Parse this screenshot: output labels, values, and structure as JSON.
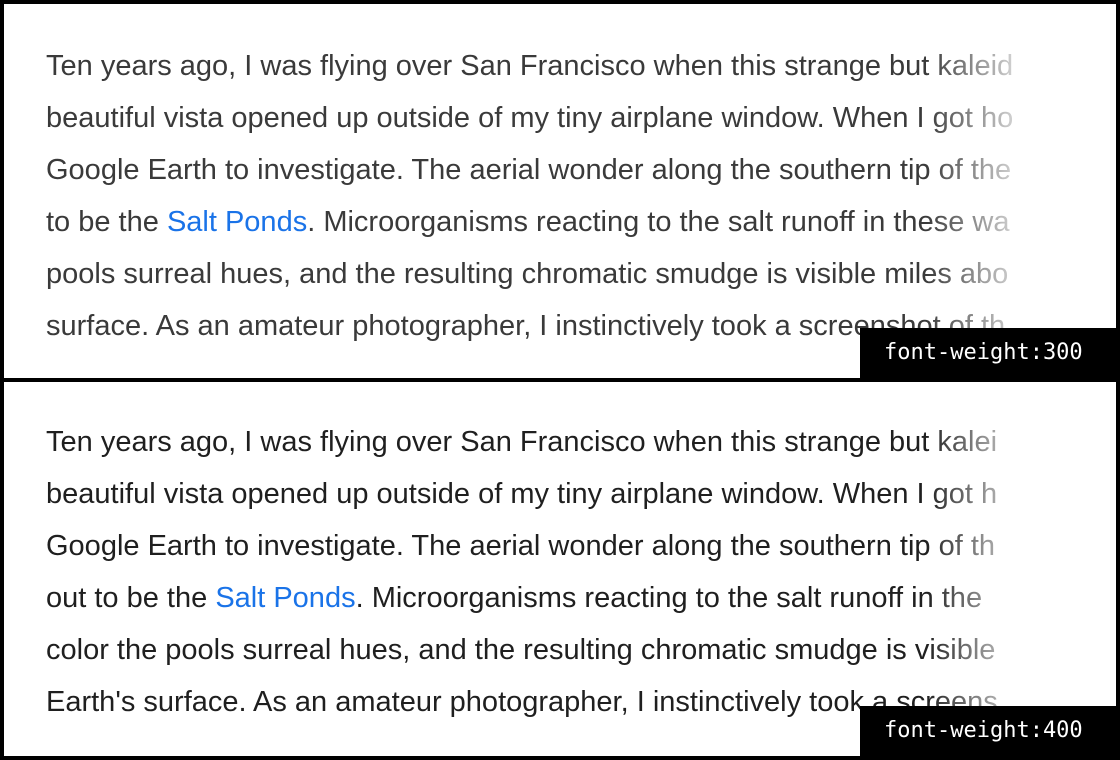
{
  "panels": [
    {
      "label": "font-weight:300",
      "lines": [
        {
          "text": "Ten years ago, I was flying over San Francisco when this strange but kaleid"
        },
        {
          "text": "beautiful vista opened up outside of my tiny airplane window. When I got ho"
        },
        {
          "text": "Google Earth to investigate. The aerial wonder along the southern tip of the"
        },
        {
          "before": "to be the ",
          "link": "Salt Ponds",
          "after": ". Microorganisms reacting to the salt runoff in these wa"
        },
        {
          "text": "pools surreal hues, and the resulting chromatic smudge is visible miles abo"
        },
        {
          "text": "surface. As an amateur photographer, I instinctively took a screenshot of th"
        }
      ]
    },
    {
      "label": "font-weight:400",
      "lines": [
        {
          "text": "Ten years ago, I was flying over San Francisco when this strange but kalei"
        },
        {
          "text": "beautiful vista opened up outside of my tiny airplane window. When I got h"
        },
        {
          "text": "Google Earth to investigate. The aerial wonder along the southern tip of th"
        },
        {
          "before": "out to be the ",
          "link": "Salt Ponds",
          "after": ". Microorganisms reacting to the salt runoff in the"
        },
        {
          "text": "color the pools surreal hues, and the resulting chromatic smudge is visible"
        },
        {
          "text": "Earth's surface. As an amateur photographer, I instinctively took a screens"
        }
      ]
    }
  ]
}
